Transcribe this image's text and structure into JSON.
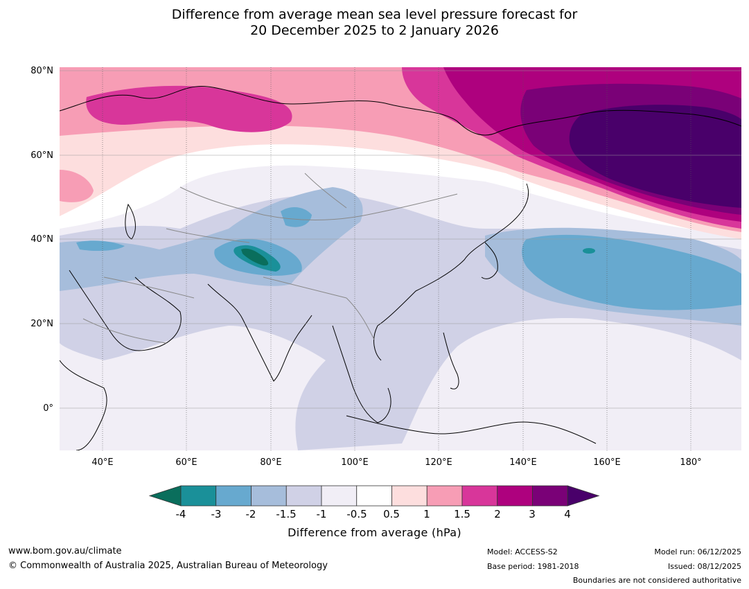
{
  "title": {
    "line1": "Difference from average mean sea level pressure forecast for",
    "line2": "20 December 2025 to 2 January 2026"
  },
  "map": {
    "region": "Asia and western Pacific",
    "latitude_labels": [
      "80°N",
      "60°N",
      "40°N",
      "20°N",
      "0°"
    ],
    "longitude_labels": [
      "40°E",
      "60°E",
      "80°E",
      "100°E",
      "120°E",
      "140°E",
      "160°E",
      "180°"
    ],
    "colors": {
      "ocean_background": "#ffffff",
      "coastline": "#000000",
      "borders": "#888888",
      "grid": "#9a9a9a"
    },
    "features": [
      {
        "name": "positive-anomaly-northeast-asia",
        "level": ">4"
      },
      {
        "name": "positive-anomaly-northern-europe",
        "level": "1.5-2"
      },
      {
        "name": "negative-anomaly-north-pacific",
        "level": "-2 to -3"
      },
      {
        "name": "negative-anomaly-tibet",
        "level": "<-4"
      }
    ]
  },
  "colorbar": {
    "ticks": [
      "-4",
      "-3",
      "-2",
      "-1.5",
      "-1",
      "-0.5",
      "0.5",
      "1",
      "1.5",
      "2",
      "3",
      "4"
    ],
    "colors": [
      "#0a6e5c",
      "#1a9099",
      "#67a9cf",
      "#a6bddb",
      "#d0d1e6",
      "#f1eef6",
      "#ffffff",
      "#fddede",
      "#f79db5",
      "#d8369a",
      "#ae017e",
      "#7a0177",
      "#49006a"
    ],
    "label": "Difference from average (hPa)"
  },
  "footer": {
    "website": "www.bom.gov.au/climate",
    "copyright": "© Commonwealth of Australia 2025, Australian Bureau of Meteorology",
    "model": "Model: ACCESS-S2",
    "base_period": "Base period: 1981-2018",
    "model_run": "Model run: 06/12/2025",
    "issued": "Issued: 08/12/2025",
    "disclaimer": "Boundaries are not considered authoritative"
  }
}
